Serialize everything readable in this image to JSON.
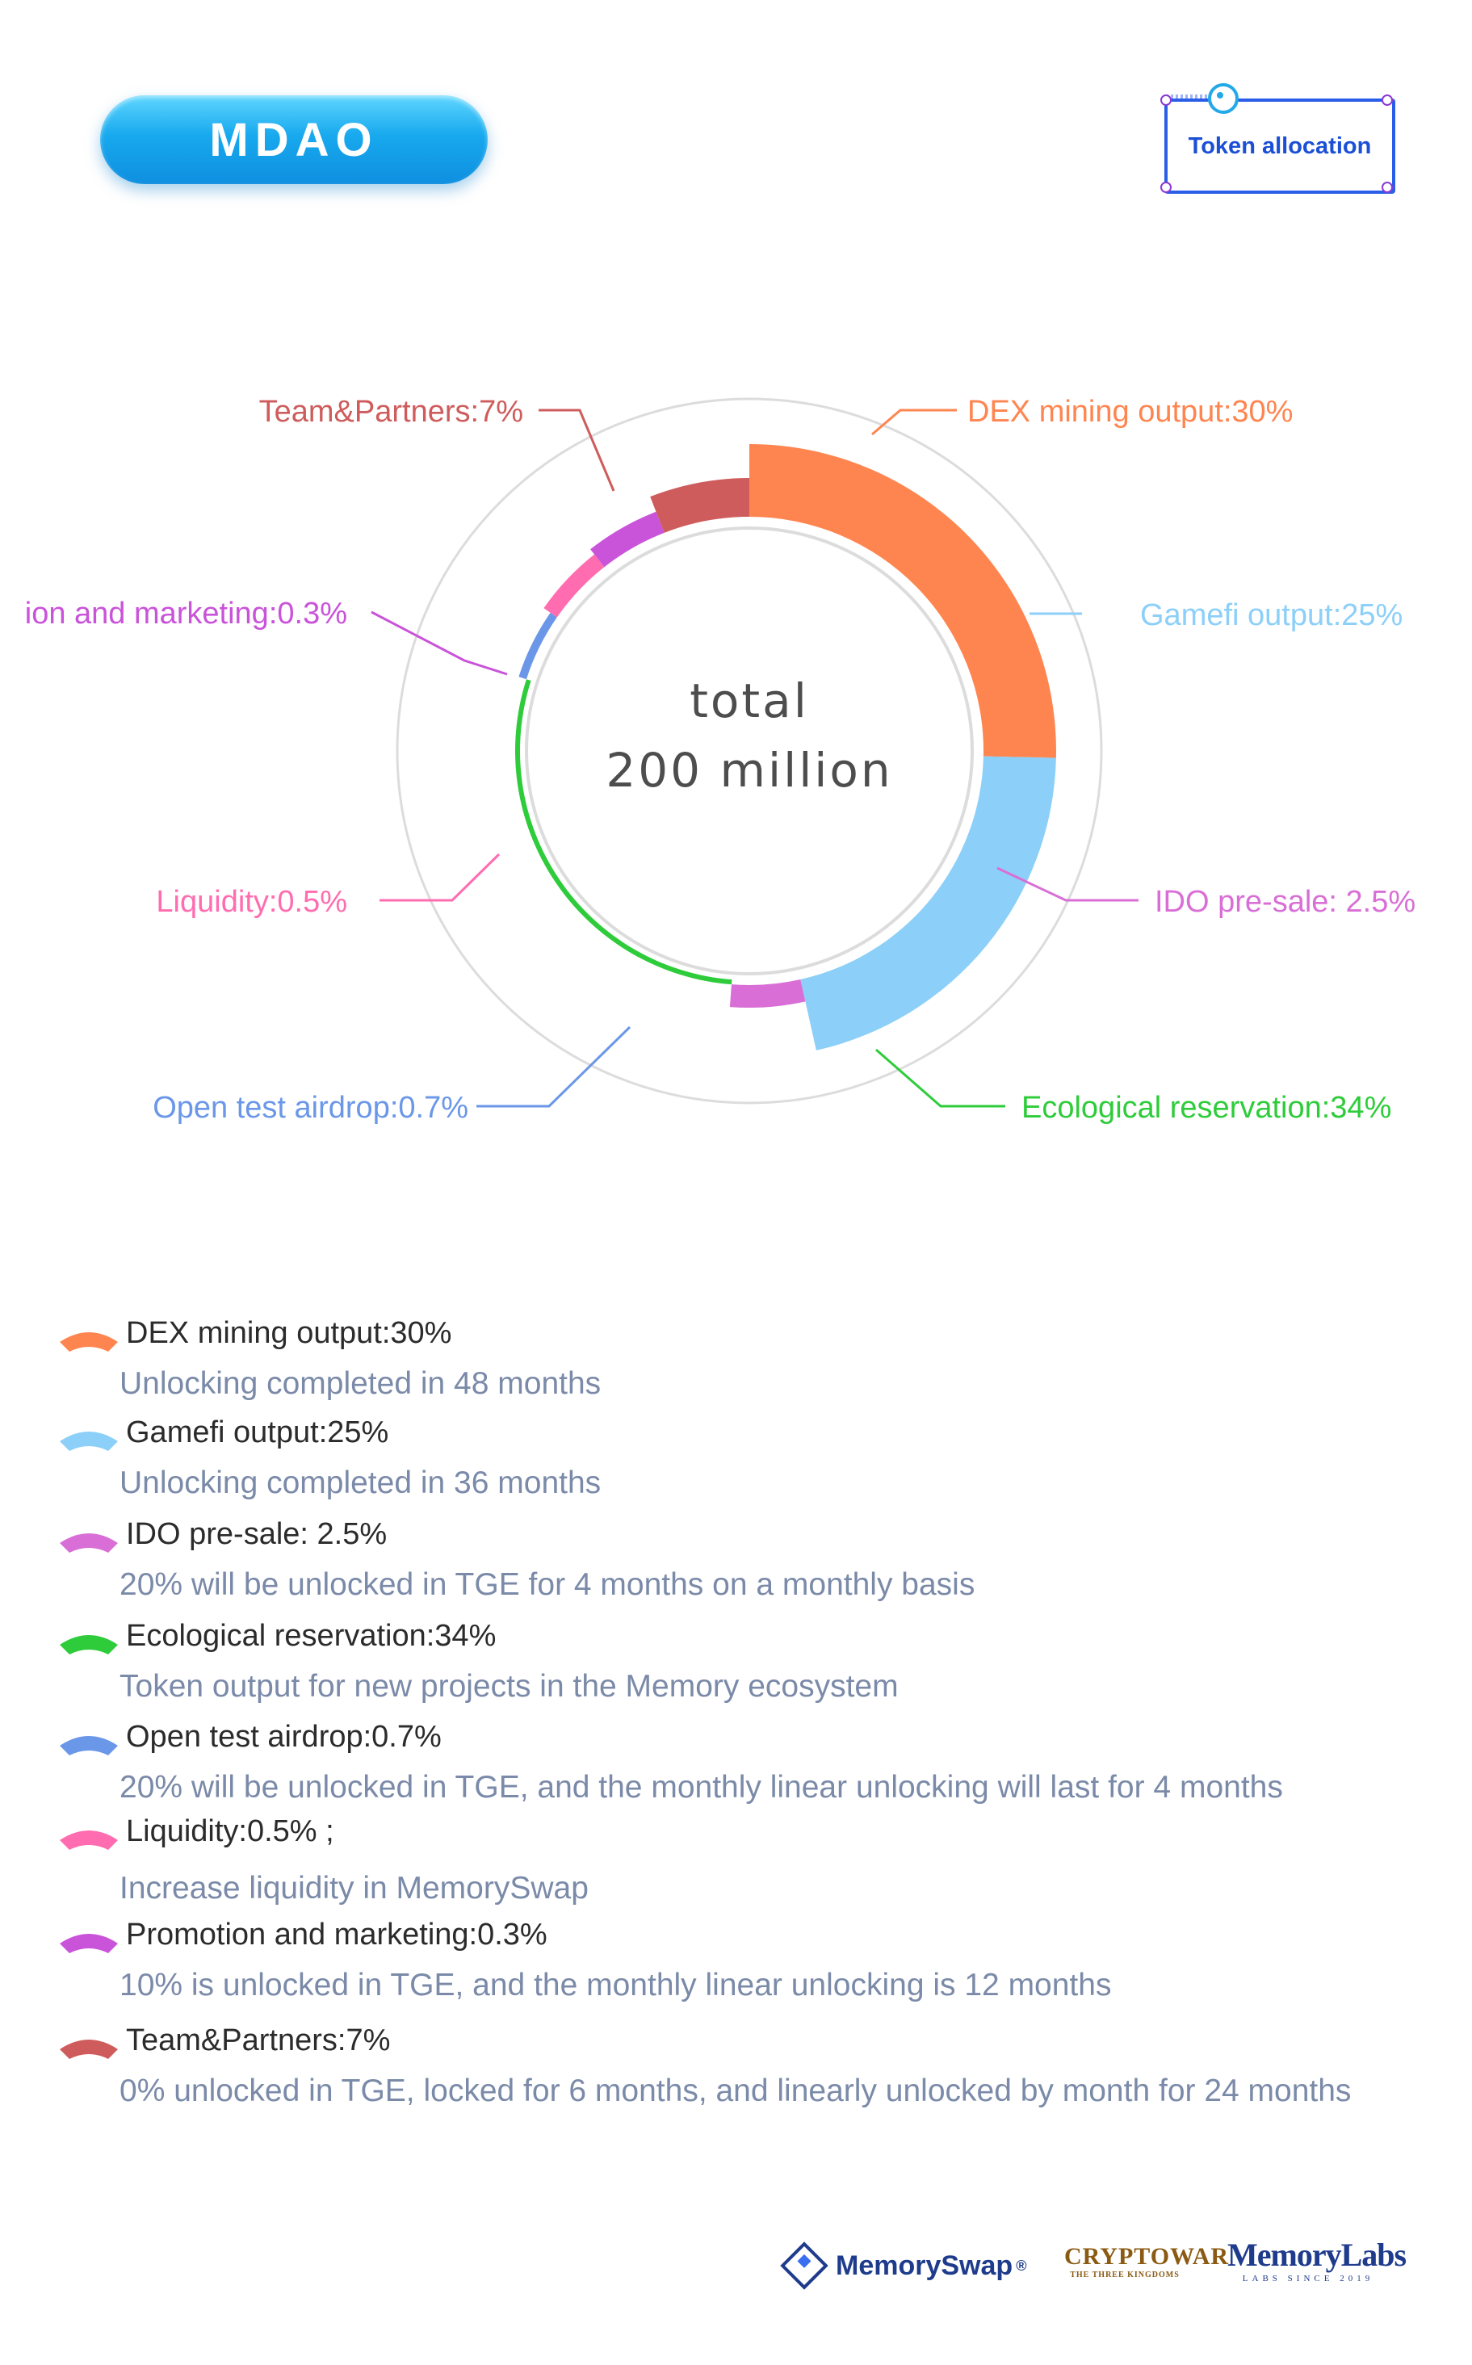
{
  "header": {
    "badge": "MDAO",
    "tag": "Token allocation"
  },
  "chart_data": {
    "type": "pie",
    "center_text": [
      "total",
      "200 million"
    ],
    "series": [
      {
        "label": "DEX mining output:30%",
        "value": 30,
        "color": "#ff8550"
      },
      {
        "label": "Gamefi output:25%",
        "value": 25,
        "color": "#8ccff8"
      },
      {
        "label": "IDO pre-sale: 2.5%",
        "value": 2.5,
        "color": "#d96fd6"
      },
      {
        "label": "Ecological reservation:34%",
        "value": 34,
        "color": "#2ecc3a"
      },
      {
        "label": "Open test airdrop:0.7%",
        "value": 0.7,
        "color": "#6a97e8"
      },
      {
        "label": "Liquidity:0.5%",
        "value": 0.5,
        "color": "#ff6db0"
      },
      {
        "label": "ion and marketing:0.3%",
        "value": 0.3,
        "color": "#c953d9"
      },
      {
        "label": "Team&Partners:7%",
        "value": 7,
        "color": "#cf5c5c"
      }
    ]
  },
  "legend": [
    {
      "name": "DEX mining output:30%",
      "desc": "Unlocking completed in 48 months",
      "color": "#ff8550"
    },
    {
      "name": "Gamefi output:25%",
      "desc": "Unlocking completed in 36 months",
      "color": "#8ccff8"
    },
    {
      "name": "IDO pre-sale: 2.5%",
      "desc": "20% will be unlocked in TGE for 4 months on a monthly basis",
      "color": "#d96fd6"
    },
    {
      "name": "Ecological reservation:34%",
      "desc": "Token output for new projects in the Memory ecosystem",
      "color": "#2ecc3a"
    },
    {
      "name": "Open test airdrop:0.7%",
      "desc": "20% will be unlocked in TGE, and the monthly linear unlocking will last for 4 months",
      "color": "#6a97e8"
    },
    {
      "name": "Liquidity:0.5% ;",
      "desc": "Increase liquidity in MemorySwap",
      "color": "#ff6db0"
    },
    {
      "name": "Promotion and marketing:0.3%",
      "desc": "10% is unlocked in TGE, and the monthly linear unlocking is 12 months",
      "color": "#c953d9"
    },
    {
      "name": "Team&Partners:7%",
      "desc": "0% unlocked in TGE, locked for 6 months, and linearly unlocked by month for 24 months",
      "color": "#cf5c5c"
    }
  ],
  "footer": {
    "memoryswap": "MemorySwap",
    "memoryswap_mark": "®",
    "crypto_top": "CRYPTOWAR",
    "crypto_bottom": "THE THREE KINGDOMS",
    "labs_top": "MemoryLabs",
    "labs_bottom": "LABS SINCE 2019"
  }
}
